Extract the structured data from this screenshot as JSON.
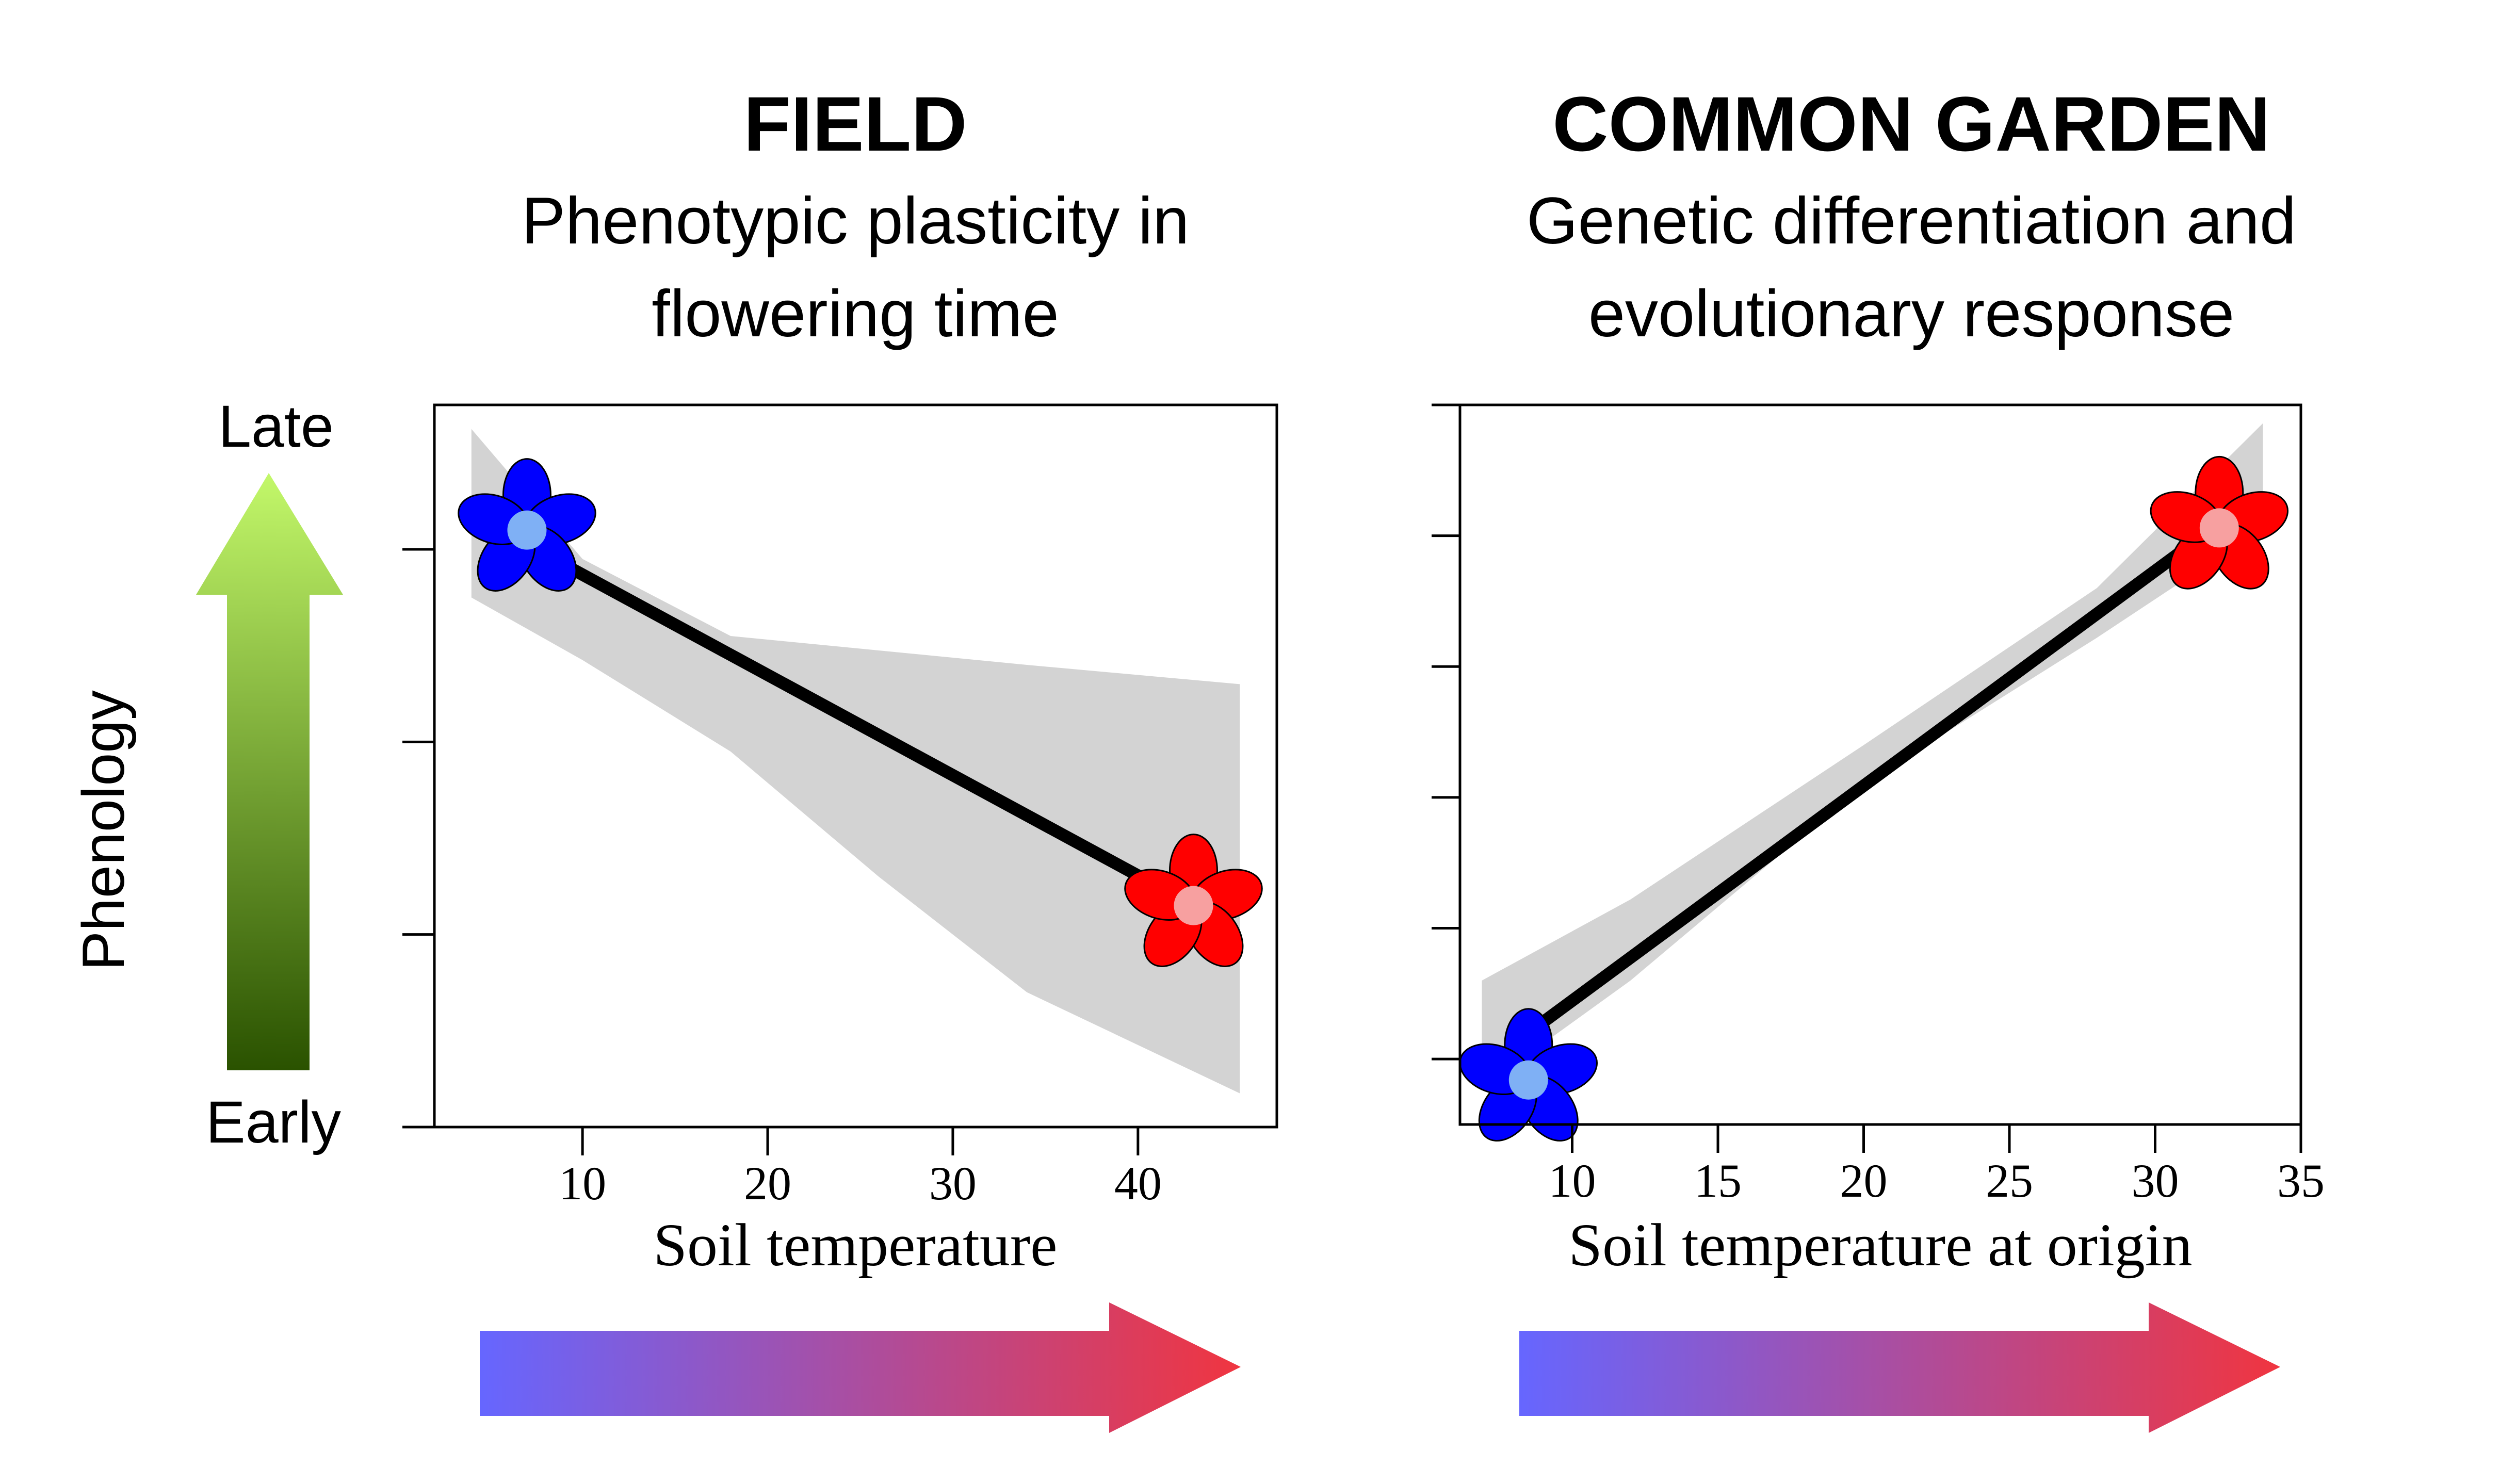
{
  "y_axis": {
    "label": "Phenology",
    "top_label": "Late",
    "bottom_label": "Early"
  },
  "colors": {
    "cold_petal": "#0000ff",
    "cold_center": "#7fb0f5",
    "warm_petal": "#ff0000",
    "warm_center": "#f7a0a0",
    "confidence_band": "#d3d3d3",
    "trend_line": "#000000",
    "phenology_arrow_top": "#c3f86a",
    "phenology_arrow_bottom": "#2a5200",
    "temperature_arrow_cold": "#6666ff",
    "temperature_arrow_warm": "#f03540"
  },
  "chart_data": [
    {
      "type": "line",
      "title": "FIELD",
      "subtitle": [
        "Phenotypic plasticity in",
        "flowering time"
      ],
      "xlabel": "Soil temperature",
      "ylabel": "Phenology",
      "xlim": [
        2,
        47.5
      ],
      "ylim": [
        0,
        1.5
      ],
      "xticks": [
        10,
        20,
        30,
        40
      ],
      "yticks": [
        0,
        0.4,
        0.8,
        1.2
      ],
      "series": [
        {
          "x": [
            7,
            43
          ],
          "y": [
            1.21,
            0.46
          ]
        }
      ],
      "band": {
        "x": [
          4,
          10,
          18,
          26,
          34,
          45.5
        ],
        "upper": [
          1.45,
          1.18,
          1.02,
          0.99,
          0.96,
          0.92
        ],
        "lower": [
          1.1,
          0.97,
          0.78,
          0.52,
          0.28,
          0.07
        ]
      },
      "markers": [
        {
          "x": 7,
          "y": 1.24,
          "group": "cold"
        },
        {
          "x": 43,
          "y": 0.46,
          "group": "warm"
        }
      ],
      "grid": false
    },
    {
      "type": "line",
      "title": "COMMON GARDEN",
      "subtitle": [
        "Genetic differentiation and",
        "evolutionary response"
      ],
      "xlabel": "Soil temperature at origin",
      "ylabel": "Phenology",
      "xlim": [
        6.15,
        35
      ],
      "ylim": [
        0,
        2.75
      ],
      "xticks": [
        10,
        15,
        20,
        25,
        30,
        35
      ],
      "yticks": [
        0.25,
        0.75,
        1.25,
        1.75,
        2.25,
        2.75
      ],
      "series": [
        {
          "x": [
            8.5,
            32
          ],
          "y": [
            0.35,
            2.28
          ]
        }
      ],
      "band": {
        "x": [
          6.9,
          12,
          20,
          28,
          33.7
        ],
        "upper": [
          0.55,
          0.86,
          1.45,
          2.05,
          2.68
        ],
        "lower": [
          0.14,
          0.55,
          1.3,
          1.86,
          2.28
        ]
      },
      "markers": [
        {
          "x": 8.5,
          "y": 0.17,
          "group": "cold"
        },
        {
          "x": 32.2,
          "y": 2.28,
          "group": "warm"
        }
      ],
      "grid": false
    }
  ]
}
